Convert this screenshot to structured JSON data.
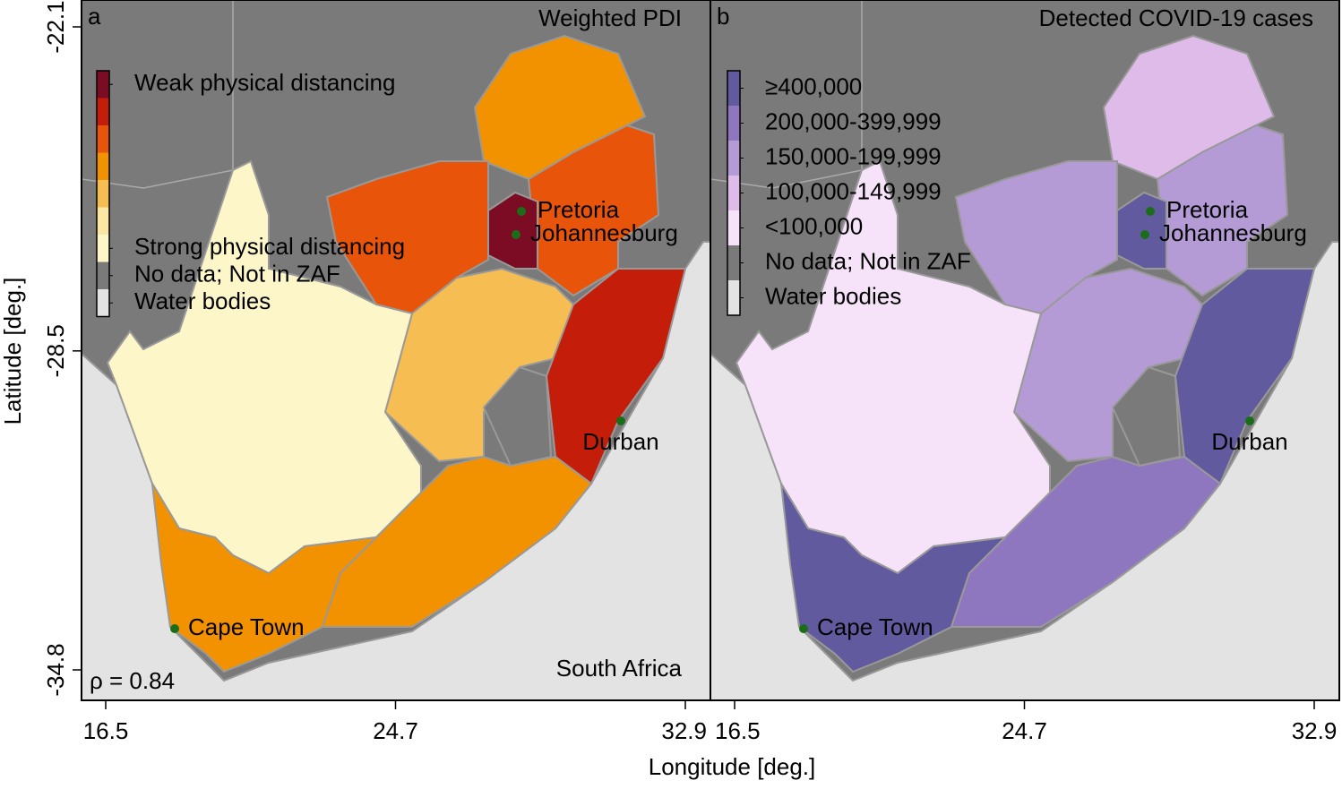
{
  "panels": [
    {
      "label": "a",
      "title": "Weighted PDI",
      "legend": [
        {
          "color": "#7b0c24",
          "label": "Weak physical distancing"
        },
        {
          "color": "#c41e0a",
          "label": null
        },
        {
          "color": "#e8550a",
          "label": null
        },
        {
          "color": "#f39200",
          "label": null
        },
        {
          "color": "#f6be52",
          "label": null
        },
        {
          "color": "#fbe6a3",
          "label": null
        },
        {
          "color": "#fdf6c9",
          "label": "Strong physical distancing"
        },
        {
          "color": "#7a7a7a",
          "label": "No data; Not in ZAF"
        },
        {
          "color": "#e3e3e3",
          "label": "Water bodies"
        }
      ],
      "region": "South Africa",
      "statistic": "ρ = 0.84",
      "xticks": [
        16.5,
        24.7,
        32.9
      ]
    },
    {
      "label": "b",
      "title": "Detected COVID-19 cases",
      "legend": [
        {
          "color": "#615a9f",
          "label": "≥400,000"
        },
        {
          "color": "#8f77c0",
          "label": "200,000-399,999"
        },
        {
          "color": "#b49bd6",
          "label": "150,000-199,999"
        },
        {
          "color": "#dfbbea",
          "label": "100,000-149,999"
        },
        {
          "color": "#f6e3f9",
          "label": "<100,000"
        },
        {
          "color": "#7a7a7a",
          "label": "No data; Not in ZAF"
        },
        {
          "color": "#e3e3e3",
          "label": "Water bodies"
        }
      ],
      "xticks": [
        16.5,
        24.7,
        32.9
      ]
    }
  ],
  "cities": [
    "Pretoria",
    "Johannesburg",
    "Durban",
    "Cape Town"
  ],
  "y_axis": {
    "label": "Latitude [deg.]",
    "ticks": [
      -22.1,
      -28.5,
      -34.8
    ]
  },
  "x_axis": {
    "label": "Longitude [deg.]"
  }
}
